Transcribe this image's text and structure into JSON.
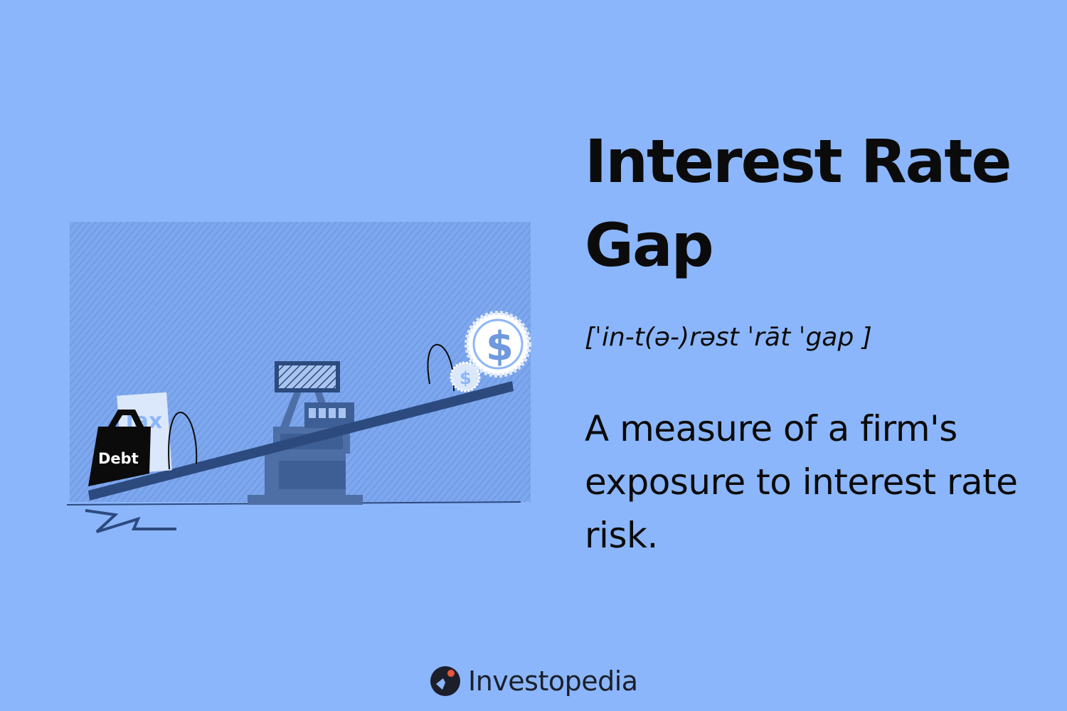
{
  "heading": {
    "line1": "Interest Rate",
    "line2": "Gap"
  },
  "pronunciation": "[ˈin-t(ə-)rəst ˈrāt ˈgap ]",
  "definition": "A measure of a firm's exposure to interest rate risk.",
  "illustration": {
    "weight_label": "Debt",
    "paper_label": "Tax",
    "coin_symbol": "$"
  },
  "brand": {
    "name": "Investopedia",
    "logo_icon": "investopedia-logo-icon"
  },
  "colors": {
    "background": "#8bb6fb",
    "text": "#0b0b0b",
    "seesaw": "#2c4a7e",
    "fulcrum": "#4d6fa6",
    "logo_accent": "#e8563a"
  }
}
